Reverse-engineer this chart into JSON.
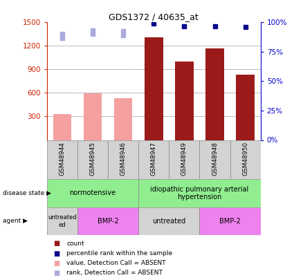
{
  "title": "GDS1372 / 40635_at",
  "samples": [
    "GSM48944",
    "GSM48945",
    "GSM48946",
    "GSM48947",
    "GSM48949",
    "GSM48948",
    "GSM48950"
  ],
  "count_values": [
    330,
    595,
    530,
    1310,
    1000,
    1165,
    830
  ],
  "count_absent": [
    true,
    true,
    true,
    false,
    false,
    false,
    false
  ],
  "percentile_values": [
    99,
    99,
    99,
    99,
    97,
    97,
    96
  ],
  "percentile_absent": [
    false,
    false,
    false,
    false,
    false,
    false,
    false
  ],
  "rank_absent_values": [
    1355,
    1400,
    1390,
    null,
    null,
    null,
    null
  ],
  "percentile_present_values": [
    null,
    null,
    null,
    99,
    97,
    97,
    96
  ],
  "ylim_left": [
    0,
    1500
  ],
  "ylim_right": [
    0,
    100
  ],
  "yticks_left": [
    300,
    600,
    900,
    1200,
    1500
  ],
  "yticks_right": [
    0,
    25,
    50,
    75,
    100
  ],
  "color_count_present": "#9b1a1a",
  "color_count_absent": "#f4a0a0",
  "color_percentile_present": "#00008b",
  "color_percentile_absent": "#aaaadd",
  "bar_width": 0.6,
  "disease_state_groups": [
    {
      "label": "normotensive",
      "start": 0,
      "end": 3,
      "color": "#90ee90"
    },
    {
      "label": "idiopathic pulmonary arterial\nhypertension",
      "start": 3,
      "end": 7,
      "color": "#90ee90"
    }
  ],
  "agent_groups": [
    {
      "label": "untreated\ned",
      "start": 0,
      "end": 1,
      "color": "#cccccc"
    },
    {
      "label": "BMP-2",
      "start": 1,
      "end": 3,
      "color": "#ee82ee"
    },
    {
      "label": "untreated",
      "start": 3,
      "end": 5,
      "color": "#cccccc"
    },
    {
      "label": "BMP-2",
      "start": 5,
      "end": 7,
      "color": "#ee82ee"
    }
  ],
  "legend_items": [
    {
      "color": "#9b1a1a",
      "label": "count"
    },
    {
      "color": "#00008b",
      "label": "percentile rank within the sample"
    },
    {
      "color": "#f4a0a0",
      "label": "value, Detection Call = ABSENT"
    },
    {
      "color": "#aaaadd",
      "label": "rank, Detection Call = ABSENT"
    }
  ]
}
